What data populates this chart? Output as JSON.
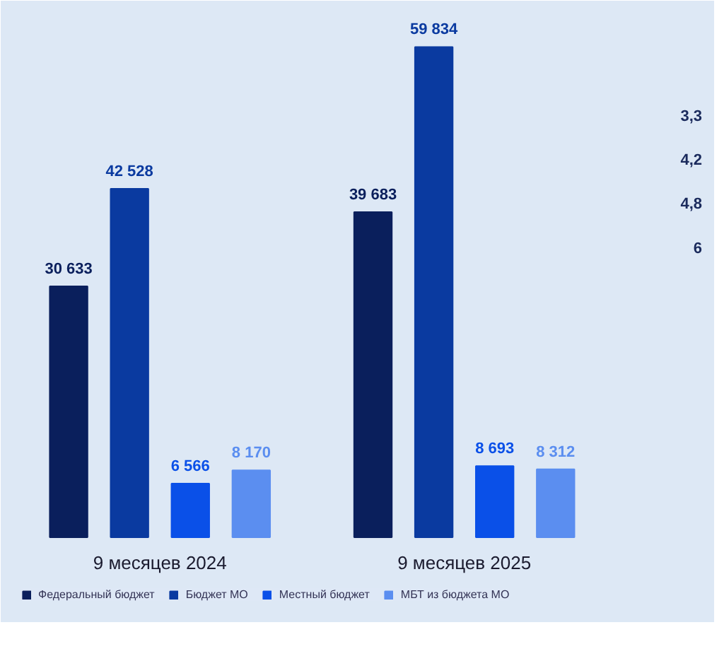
{
  "chart_data": {
    "type": "bar",
    "categories": [
      "9 месяцев 2024",
      "9 месяцев 2025"
    ],
    "series": [
      {
        "name": "Федеральный бюджет",
        "color": "#0a1f5c",
        "values": [
          30633,
          39683
        ],
        "value_labels": [
          "30 633",
          "39 683"
        ]
      },
      {
        "name": "Бюджет МО",
        "color": "#0a3aa0",
        "values": [
          42528,
          59834
        ],
        "value_labels": [
          "42 528",
          "59 834"
        ]
      },
      {
        "name": "Местный бюджет",
        "color": "#0a50e8",
        "values": [
          6566,
          8693
        ],
        "value_labels": [
          "6 566",
          "8 693"
        ]
      },
      {
        "name": "МБТ из бюджета МО",
        "color": "#5b8ef0",
        "values": [
          8170,
          8312
        ],
        "value_labels": [
          "8 170",
          "8 312"
        ]
      }
    ],
    "legend": "bottom",
    "annotations": [
      "3,3",
      "4,2",
      "4,8",
      "6"
    ]
  }
}
